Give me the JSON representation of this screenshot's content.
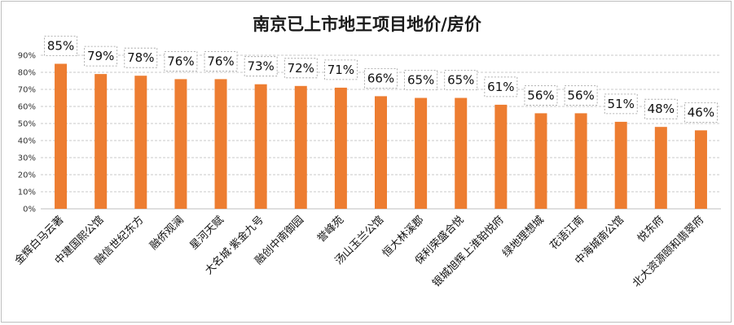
{
  "chart_data": {
    "type": "bar",
    "title": "南京已上市地王项目地价/房价",
    "categories": [
      "金辉白马云著",
      "中建国熙公馆",
      "融信世纪东方",
      "融侨观澜",
      "星河天赋",
      "大名城·紫金九号",
      "融创中南御园",
      "誉峰苑",
      "汤山玉兰公馆",
      "恒大林溪郡",
      "保利荣盛合悦",
      "银城旭辉上淮铂悦府",
      "绿地理想城",
      "花语江南",
      "中海城南公馆",
      "悦东府",
      "北大资源颐和翡翠府"
    ],
    "values": [
      85,
      79,
      78,
      76,
      76,
      73,
      72,
      71,
      66,
      65,
      65,
      61,
      56,
      56,
      51,
      48,
      46
    ],
    "data_labels": [
      "85%",
      "79%",
      "78%",
      "76%",
      "76%",
      "73%",
      "72%",
      "71%",
      "66%",
      "65%",
      "65%",
      "61%",
      "56%",
      "56%",
      "51%",
      "48%",
      "46%"
    ],
    "y_ticks": [
      "0%",
      "10%",
      "20%",
      "30%",
      "40%",
      "50%",
      "60%",
      "70%",
      "80%",
      "90%"
    ],
    "ylim": [
      0,
      90
    ],
    "grid": true,
    "bar_color": "#ED7D31",
    "xlabel": "",
    "ylabel": ""
  }
}
